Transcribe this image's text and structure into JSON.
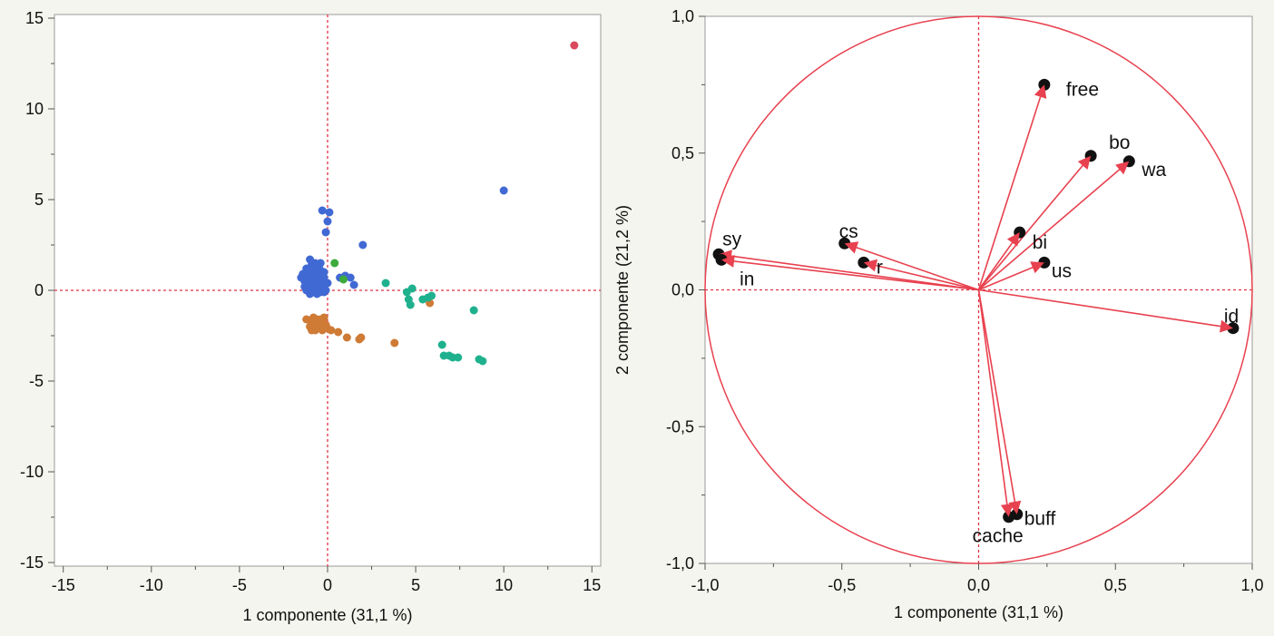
{
  "colors": {
    "background": "#f5f5ef",
    "plot_bg": "#ffffff",
    "frame": "#9a9a9a",
    "crosshair": "#e03244",
    "blue": "#4169d4",
    "orange": "#cf7a35",
    "teal": "#1fb18e",
    "green": "#3caa3c",
    "red": "#d9485e",
    "vector": "#e8414f",
    "dot": "#111111"
  },
  "chart_data": [
    {
      "type": "scatter",
      "xlabel": "1 componente  (31,1 %)",
      "ylabel": "",
      "xlim": [
        -15.5,
        15.5
      ],
      "ylim": [
        -15.2,
        15.2
      ],
      "x_ticks": [
        -15,
        -10,
        -5,
        0,
        5,
        10,
        15
      ],
      "x_tick_labels": [
        "-15",
        "-10",
        "-5",
        "0",
        "5",
        "10",
        "15"
      ],
      "y_ticks": [
        -15,
        -10,
        -5,
        0,
        5,
        10,
        15
      ],
      "y_tick_labels": [
        "-15",
        "-10",
        "-5",
        "0",
        "5",
        "10",
        "15"
      ],
      "reference_lines": {
        "x": 0,
        "y": 0
      },
      "grid": false,
      "series": [
        {
          "color": "blue",
          "points": [
            [
              -0.3,
              4.4
            ],
            [
              0.1,
              4.3
            ],
            [
              0.0,
              3.8
            ],
            [
              -0.1,
              3.2
            ],
            [
              2.0,
              2.5
            ],
            [
              10.0,
              5.5
            ],
            [
              -1.0,
              1.7
            ],
            [
              -0.7,
              1.5
            ],
            [
              -1.2,
              1.2
            ],
            [
              -0.9,
              1.0
            ],
            [
              -0.6,
              1.3
            ],
            [
              -0.4,
              1.1
            ],
            [
              -1.1,
              0.8
            ],
            [
              -0.8,
              0.6
            ],
            [
              -0.5,
              0.9
            ],
            [
              -0.2,
              0.7
            ],
            [
              -1.3,
              0.5
            ],
            [
              -1.0,
              0.3
            ],
            [
              -0.6,
              0.4
            ],
            [
              -0.3,
              0.2
            ],
            [
              -1.2,
              0.0
            ],
            [
              -0.8,
              -0.1
            ],
            [
              -0.5,
              0.1
            ],
            [
              -0.1,
              0.0
            ],
            [
              -0.9,
              1.4
            ],
            [
              -0.4,
              1.5
            ],
            [
              -1.4,
              0.9
            ],
            [
              -0.7,
              0.2
            ],
            [
              -0.2,
              1.0
            ],
            [
              -0.6,
              -0.2
            ],
            [
              -1.1,
              1.1
            ],
            [
              -0.3,
              0.5
            ],
            [
              -0.9,
              0.7
            ],
            [
              -0.5,
              0.6
            ],
            [
              -1.3,
              0.2
            ],
            [
              -0.2,
              0.3
            ],
            [
              -0.8,
              1.2
            ],
            [
              -1.0,
              -0.2
            ],
            [
              -0.6,
              0.8
            ],
            [
              -0.4,
              -0.1
            ],
            [
              -0.7,
              1.0
            ],
            [
              -1.2,
              0.6
            ],
            [
              0.0,
              0.4
            ],
            [
              -0.5,
              1.3
            ],
            [
              -0.9,
              0.0
            ],
            [
              -0.3,
              0.8
            ],
            [
              -1.5,
              0.7
            ],
            [
              -0.8,
              0.9
            ],
            [
              -0.6,
              0.0
            ],
            [
              -0.2,
              -0.1
            ],
            [
              0.7,
              0.7
            ],
            [
              1.0,
              0.8
            ],
            [
              1.3,
              0.7
            ],
            [
              1.5,
              0.3
            ]
          ]
        },
        {
          "color": "orange",
          "points": [
            [
              -1.2,
              -1.6
            ],
            [
              -0.9,
              -1.8
            ],
            [
              -0.6,
              -1.6
            ],
            [
              -0.4,
              -2.0
            ],
            [
              -0.2,
              -1.5
            ],
            [
              -0.7,
              -2.2
            ],
            [
              -1.0,
              -2.0
            ],
            [
              -0.5,
              -1.8
            ],
            [
              -0.3,
              -2.2
            ],
            [
              -0.8,
              -1.5
            ],
            [
              -0.1,
              -1.9
            ],
            [
              0.0,
              -2.1
            ],
            [
              -0.6,
              -2.0
            ],
            [
              -0.4,
              -1.6
            ],
            [
              0.2,
              -2.2
            ],
            [
              -0.9,
              -2.2
            ],
            [
              0.6,
              -2.3
            ],
            [
              1.1,
              -2.6
            ],
            [
              1.8,
              -2.7
            ],
            [
              1.9,
              -2.6
            ],
            [
              3.8,
              -2.9
            ],
            [
              5.8,
              -0.7
            ]
          ]
        },
        {
          "color": "teal",
          "points": [
            [
              3.3,
              0.4
            ],
            [
              4.5,
              -0.1
            ],
            [
              4.8,
              0.1
            ],
            [
              4.6,
              -0.5
            ],
            [
              4.7,
              -0.8
            ],
            [
              5.4,
              -0.5
            ],
            [
              5.7,
              -0.4
            ],
            [
              5.9,
              -0.3
            ],
            [
              8.3,
              -1.1
            ],
            [
              6.5,
              -3.0
            ],
            [
              6.6,
              -3.6
            ],
            [
              6.9,
              -3.6
            ],
            [
              7.1,
              -3.7
            ],
            [
              7.4,
              -3.7
            ],
            [
              8.6,
              -3.8
            ],
            [
              8.8,
              -3.9
            ]
          ]
        },
        {
          "color": "green",
          "points": [
            [
              0.4,
              1.5
            ],
            [
              0.9,
              0.6
            ]
          ]
        },
        {
          "color": "red",
          "points": [
            [
              14.0,
              13.5
            ]
          ]
        }
      ]
    },
    {
      "type": "scatter",
      "xlabel": "1 componente  (31,1 %)",
      "ylabel": "2 componente  (21,2 %)",
      "xlim": [
        -1.0,
        1.0
      ],
      "ylim": [
        -1.0,
        1.0
      ],
      "x_ticks": [
        -1.0,
        -0.5,
        0.0,
        0.5,
        1.0
      ],
      "x_tick_labels": [
        "-1,0",
        "-0,5",
        "0,0",
        "0,5",
        "1,0"
      ],
      "y_ticks": [
        -1.0,
        -0.5,
        0.0,
        0.5,
        1.0
      ],
      "y_tick_labels": [
        "-1,0",
        "-0,5",
        "0,0",
        "0,5",
        "1,0"
      ],
      "reference_lines": {
        "x": 0,
        "y": 0
      },
      "unit_circle": true,
      "grid": false,
      "vectors": [
        {
          "label": "free",
          "x": 0.24,
          "y": 0.75
        },
        {
          "label": "bo",
          "x": 0.41,
          "y": 0.49
        },
        {
          "label": "wa",
          "x": 0.55,
          "y": 0.47
        },
        {
          "label": "bi",
          "x": 0.15,
          "y": 0.21
        },
        {
          "label": "us",
          "x": 0.24,
          "y": 0.1
        },
        {
          "label": "cs",
          "x": -0.49,
          "y": 0.17
        },
        {
          "label": "r",
          "x": -0.42,
          "y": 0.1
        },
        {
          "label": "sy",
          "x": -0.95,
          "y": 0.13
        },
        {
          "label": "in",
          "x": -0.94,
          "y": 0.11
        },
        {
          "label": "id",
          "x": 0.93,
          "y": -0.14
        },
        {
          "label": "buff",
          "x": 0.14,
          "y": -0.82
        },
        {
          "label": "cache",
          "x": 0.11,
          "y": -0.83
        }
      ]
    }
  ]
}
